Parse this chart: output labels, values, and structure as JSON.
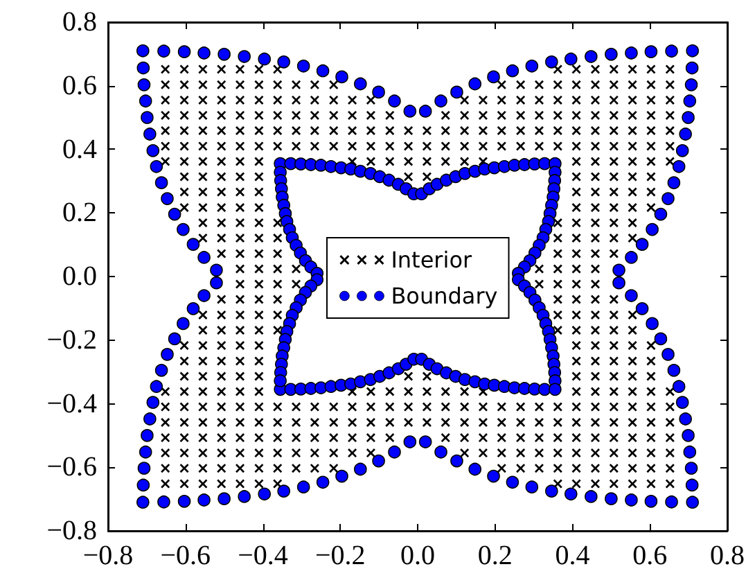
{
  "chart_data": {
    "type": "scatter",
    "xlim": [
      -0.8,
      0.8
    ],
    "ylim": [
      -0.8,
      0.8
    ],
    "xticks": [
      {
        "value": -0.8,
        "label": "−0.8"
      },
      {
        "value": -0.6,
        "label": "−0.6"
      },
      {
        "value": -0.4,
        "label": "−0.4"
      },
      {
        "value": -0.2,
        "label": "−0.2"
      },
      {
        "value": 0,
        "label": "0.0"
      },
      0.2,
      0.4,
      0.6,
      0.8
    ],
    "yticks": [
      {
        "value": -0.8,
        "label": "−0.8"
      },
      {
        "value": -0.6,
        "label": "−0.6"
      },
      {
        "value": -0.4,
        "label": "−0.4"
      },
      {
        "value": -0.2,
        "label": "−0.2"
      },
      {
        "value": 0,
        "label": "0.0"
      },
      0.2,
      0.4,
      0.6,
      0.8
    ],
    "legend": "center",
    "series": [
      {
        "name": "Interior",
        "color": "#000000",
        "marker": "cross",
        "x": [
          -0.652,
          -0.603,
          -0.555,
          -0.507,
          -0.459,
          -0.41,
          -0.362,
          0.362,
          0.41,
          0.459,
          0.507,
          0.555,
          0.603,
          0.652,
          -0.652,
          -0.603,
          -0.555,
          -0.507,
          -0.459,
          -0.41,
          -0.362,
          -0.314,
          -0.266,
          -0.217,
          0.217,
          0.266,
          0.314,
          0.362,
          0.41,
          0.459,
          0.507,
          0.555,
          0.603,
          0.652,
          -0.652,
          -0.603,
          -0.555,
          -0.507,
          -0.459,
          -0.41,
          -0.362,
          -0.314,
          -0.266,
          -0.217,
          -0.169,
          -0.121,
          0.121,
          0.169,
          0.217,
          0.266,
          0.314,
          0.362,
          0.41,
          0.459,
          0.507,
          0.555,
          0.603,
          0.652,
          -0.652,
          -0.603,
          -0.555,
          -0.507,
          -0.459,
          -0.41,
          -0.362,
          -0.314,
          -0.266,
          -0.217,
          -0.169,
          -0.121,
          -0.072,
          0.072,
          0.121,
          0.169,
          0.217,
          0.266,
          0.314,
          0.362,
          0.41,
          0.459,
          0.507,
          0.555,
          0.603,
          0.652,
          -0.652,
          -0.603,
          -0.555,
          -0.507,
          -0.459,
          -0.41,
          -0.362,
          -0.314,
          -0.266,
          -0.217,
          -0.169,
          -0.121,
          -0.072,
          -0.024,
          0.024,
          0.072,
          0.121,
          0.169,
          0.217,
          0.266,
          0.314,
          0.362,
          0.41,
          0.459,
          0.507,
          0.555,
          0.603,
          0.652,
          -0.652,
          -0.603,
          -0.555,
          -0.507,
          -0.459,
          -0.41,
          -0.362,
          -0.314,
          -0.266,
          -0.217,
          -0.169,
          -0.121,
          -0.072,
          -0.024,
          0.024,
          0.072,
          0.121,
          0.169,
          0.217,
          0.266,
          0.314,
          0.362,
          0.41,
          0.459,
          0.507,
          0.555,
          0.603,
          0.652,
          -0.652,
          -0.603,
          -0.555,
          -0.507,
          -0.459,
          -0.41,
          -0.169,
          -0.121,
          -0.072,
          -0.024,
          0.024,
          0.072,
          0.121,
          0.169,
          0.41,
          0.459,
          0.507,
          0.555,
          0.603,
          0.652,
          -0.603,
          -0.555,
          -0.507,
          -0.459,
          -0.41,
          -0.024,
          0.024,
          0.41,
          0.459,
          0.507,
          0.555,
          0.603,
          -0.603,
          -0.555,
          -0.507,
          -0.459,
          -0.41,
          0.41,
          0.459,
          0.507,
          0.555,
          0.603,
          -0.603,
          -0.555,
          -0.507,
          -0.459,
          -0.41,
          0.41,
          0.459,
          0.507,
          0.555,
          0.603,
          -0.555,
          -0.507,
          -0.459,
          -0.41,
          -0.362,
          0.362,
          0.41,
          0.459,
          0.507,
          0.555,
          -0.555,
          -0.507,
          -0.459,
          -0.41,
          -0.362,
          0.362,
          0.41,
          0.459,
          0.507,
          0.555,
          -0.507,
          -0.459,
          -0.41,
          -0.362,
          0.362,
          0.41,
          0.459,
          0.507,
          -0.459,
          -0.41,
          -0.362,
          -0.314,
          0.314,
          0.362,
          0.41,
          0.459,
          -0.459,
          -0.41,
          -0.362,
          -0.314,
          0.314,
          0.362,
          0.41,
          0.459,
          -0.507,
          -0.459,
          -0.41,
          -0.362,
          0.362,
          0.41,
          0.459,
          0.507,
          -0.555,
          -0.507,
          -0.459,
          -0.41,
          -0.362,
          0.362,
          0.41,
          0.459,
          0.507,
          0.555,
          -0.555,
          -0.507,
          -0.459,
          -0.41,
          -0.362,
          0.362,
          0.41,
          0.459,
          0.507,
          0.555,
          -0.603,
          -0.555,
          -0.507,
          -0.459,
          -0.41,
          0.41,
          0.459,
          0.507,
          0.555,
          0.603,
          -0.603,
          -0.555,
          -0.507,
          -0.459,
          -0.41,
          0.41,
          0.459,
          0.507,
          0.555,
          0.603,
          -0.603,
          -0.555,
          -0.507,
          -0.459,
          -0.41,
          -0.024,
          0.024,
          0.41,
          0.459,
          0.507,
          0.555,
          0.603,
          -0.652,
          -0.603,
          -0.555,
          -0.507,
          -0.459,
          -0.41,
          -0.169,
          -0.121,
          -0.072,
          -0.024,
          0.024,
          0.072,
          0.121,
          0.169,
          0.41,
          0.459,
          0.507,
          0.555,
          0.603,
          0.652,
          -0.652,
          -0.603,
          -0.555,
          -0.507,
          -0.459,
          -0.41,
          -0.362,
          -0.314,
          -0.266,
          -0.217,
          -0.169,
          -0.121,
          -0.072,
          -0.024,
          0.024,
          0.072,
          0.121,
          0.169,
          0.217,
          0.266,
          0.314,
          0.362,
          0.41,
          0.459,
          0.507,
          0.555,
          0.603,
          0.652,
          -0.652,
          -0.603,
          -0.555,
          -0.507,
          -0.459,
          -0.41,
          -0.362,
          -0.314,
          -0.266,
          -0.217,
          -0.169,
          -0.121,
          -0.072,
          -0.024,
          0.024,
          0.072,
          0.121,
          0.169,
          0.217,
          0.266,
          0.314,
          0.362,
          0.41,
          0.459,
          0.507,
          0.555,
          0.603,
          0.652,
          -0.652,
          -0.603,
          -0.555,
          -0.507,
          -0.459,
          -0.41,
          -0.362,
          -0.314,
          -0.266,
          -0.217,
          -0.169,
          -0.121,
          -0.072,
          0.072,
          0.121,
          0.169,
          0.217,
          0.266,
          0.314,
          0.362,
          0.41,
          0.459,
          0.507,
          0.555,
          0.603,
          0.652,
          -0.652,
          -0.603,
          -0.555,
          -0.507,
          -0.459,
          -0.41,
          -0.362,
          -0.314,
          -0.266,
          -0.217,
          -0.169,
          -0.121,
          0.121,
          0.169,
          0.217,
          0.266,
          0.314,
          0.362,
          0.41,
          0.459,
          0.507,
          0.555,
          0.603,
          0.652,
          -0.652,
          -0.603,
          -0.555,
          -0.507,
          -0.459,
          -0.41,
          -0.362,
          -0.314,
          -0.266,
          -0.217,
          0.217,
          0.266,
          0.314,
          0.362,
          0.41,
          0.459,
          0.507,
          0.555,
          0.603,
          0.652,
          -0.652,
          -0.603,
          -0.555,
          -0.507,
          -0.459,
          -0.41,
          -0.362,
          0.362,
          0.41,
          0.459,
          0.507,
          0.555,
          0.603,
          0.652
        ],
        "values": [
          0.652,
          0.652,
          0.652,
          0.652,
          0.652,
          0.652,
          0.652,
          0.652,
          0.652,
          0.652,
          0.652,
          0.652,
          0.652,
          0.652,
          0.603,
          0.603,
          0.603,
          0.603,
          0.603,
          0.603,
          0.603,
          0.603,
          0.603,
          0.603,
          0.603,
          0.603,
          0.603,
          0.603,
          0.603,
          0.603,
          0.603,
          0.603,
          0.603,
          0.603,
          0.555,
          0.555,
          0.555,
          0.555,
          0.555,
          0.555,
          0.555,
          0.555,
          0.555,
          0.555,
          0.555,
          0.555,
          0.555,
          0.555,
          0.555,
          0.555,
          0.555,
          0.555,
          0.555,
          0.555,
          0.555,
          0.555,
          0.555,
          0.555,
          0.507,
          0.507,
          0.507,
          0.507,
          0.507,
          0.507,
          0.507,
          0.507,
          0.507,
          0.507,
          0.507,
          0.507,
          0.507,
          0.507,
          0.507,
          0.507,
          0.507,
          0.507,
          0.507,
          0.507,
          0.507,
          0.507,
          0.507,
          0.507,
          0.507,
          0.507,
          0.459,
          0.459,
          0.459,
          0.459,
          0.459,
          0.459,
          0.459,
          0.459,
          0.459,
          0.459,
          0.459,
          0.459,
          0.459,
          0.459,
          0.459,
          0.459,
          0.459,
          0.459,
          0.459,
          0.459,
          0.459,
          0.459,
          0.459,
          0.459,
          0.459,
          0.459,
          0.459,
          0.459,
          0.41,
          0.41,
          0.41,
          0.41,
          0.41,
          0.41,
          0.41,
          0.41,
          0.41,
          0.41,
          0.41,
          0.41,
          0.41,
          0.41,
          0.41,
          0.41,
          0.41,
          0.41,
          0.41,
          0.41,
          0.41,
          0.41,
          0.41,
          0.41,
          0.41,
          0.41,
          0.41,
          0.41,
          0.362,
          0.362,
          0.362,
          0.362,
          0.362,
          0.362,
          0.362,
          0.362,
          0.362,
          0.362,
          0.362,
          0.362,
          0.362,
          0.362,
          0.362,
          0.362,
          0.362,
          0.362,
          0.362,
          0.362,
          0.314,
          0.314,
          0.314,
          0.314,
          0.314,
          0.314,
          0.314,
          0.314,
          0.314,
          0.314,
          0.314,
          0.314,
          0.266,
          0.266,
          0.266,
          0.266,
          0.266,
          0.266,
          0.266,
          0.266,
          0.266,
          0.266,
          0.217,
          0.217,
          0.217,
          0.217,
          0.217,
          0.217,
          0.217,
          0.217,
          0.217,
          0.217,
          0.169,
          0.169,
          0.169,
          0.169,
          0.169,
          0.169,
          0.169,
          0.169,
          0.169,
          0.169,
          0.121,
          0.121,
          0.121,
          0.121,
          0.121,
          0.121,
          0.121,
          0.121,
          0.121,
          0.121,
          0.072,
          0.072,
          0.072,
          0.072,
          0.072,
          0.072,
          0.072,
          0.072,
          0.024,
          0.024,
          0.024,
          0.024,
          0.024,
          0.024,
          0.024,
          0.024,
          -0.024,
          -0.024,
          -0.024,
          -0.024,
          -0.024,
          -0.024,
          -0.024,
          -0.024,
          -0.072,
          -0.072,
          -0.072,
          -0.072,
          -0.072,
          -0.072,
          -0.072,
          -0.072,
          -0.121,
          -0.121,
          -0.121,
          -0.121,
          -0.121,
          -0.121,
          -0.121,
          -0.121,
          -0.121,
          -0.121,
          -0.169,
          -0.169,
          -0.169,
          -0.169,
          -0.169,
          -0.169,
          -0.169,
          -0.169,
          -0.169,
          -0.169,
          -0.217,
          -0.217,
          -0.217,
          -0.217,
          -0.217,
          -0.217,
          -0.217,
          -0.217,
          -0.217,
          -0.217,
          -0.266,
          -0.266,
          -0.266,
          -0.266,
          -0.266,
          -0.266,
          -0.266,
          -0.266,
          -0.266,
          -0.266,
          -0.314,
          -0.314,
          -0.314,
          -0.314,
          -0.314,
          -0.314,
          -0.314,
          -0.314,
          -0.314,
          -0.314,
          -0.314,
          -0.314,
          -0.362,
          -0.362,
          -0.362,
          -0.362,
          -0.362,
          -0.362,
          -0.362,
          -0.362,
          -0.362,
          -0.362,
          -0.362,
          -0.362,
          -0.362,
          -0.362,
          -0.362,
          -0.362,
          -0.362,
          -0.362,
          -0.362,
          -0.362,
          -0.41,
          -0.41,
          -0.41,
          -0.41,
          -0.41,
          -0.41,
          -0.41,
          -0.41,
          -0.41,
          -0.41,
          -0.41,
          -0.41,
          -0.41,
          -0.41,
          -0.41,
          -0.41,
          -0.41,
          -0.41,
          -0.41,
          -0.41,
          -0.41,
          -0.41,
          -0.41,
          -0.41,
          -0.41,
          -0.41,
          -0.41,
          -0.41,
          -0.459,
          -0.459,
          -0.459,
          -0.459,
          -0.459,
          -0.459,
          -0.459,
          -0.459,
          -0.459,
          -0.459,
          -0.459,
          -0.459,
          -0.459,
          -0.459,
          -0.459,
          -0.459,
          -0.459,
          -0.459,
          -0.459,
          -0.459,
          -0.459,
          -0.459,
          -0.459,
          -0.459,
          -0.459,
          -0.459,
          -0.459,
          -0.459,
          -0.507,
          -0.507,
          -0.507,
          -0.507,
          -0.507,
          -0.507,
          -0.507,
          -0.507,
          -0.507,
          -0.507,
          -0.507,
          -0.507,
          -0.507,
          -0.507,
          -0.507,
          -0.507,
          -0.507,
          -0.507,
          -0.507,
          -0.507,
          -0.507,
          -0.507,
          -0.507,
          -0.507,
          -0.507,
          -0.507,
          -0.555,
          -0.555,
          -0.555,
          -0.555,
          -0.555,
          -0.555,
          -0.555,
          -0.555,
          -0.555,
          -0.555,
          -0.555,
          -0.555,
          -0.555,
          -0.555,
          -0.555,
          -0.555,
          -0.555,
          -0.555,
          -0.555,
          -0.555,
          -0.555,
          -0.555,
          -0.555,
          -0.555,
          -0.603,
          -0.603,
          -0.603,
          -0.603,
          -0.603,
          -0.603,
          -0.603,
          -0.603,
          -0.603,
          -0.603,
          -0.603,
          -0.603,
          -0.603,
          -0.603,
          -0.603,
          -0.603,
          -0.603,
          -0.603,
          -0.603,
          -0.603,
          -0.652,
          -0.652,
          -0.652,
          -0.652,
          -0.652,
          -0.652,
          -0.652,
          -0.652,
          -0.652,
          -0.652,
          -0.652,
          -0.652,
          -0.652,
          -0.652
        ]
      },
      {
        "name": "Boundary",
        "color": "#0000ff",
        "marker": "circle",
        "x": [
          -0.71,
          -0.656,
          -0.603,
          -0.552,
          -0.5,
          -0.448,
          -0.396,
          -0.346,
          -0.295,
          -0.245,
          -0.196,
          -0.148,
          -0.101,
          -0.06,
          -0.02,
          0.02,
          0.06,
          0.101,
          0.148,
          0.196,
          0.245,
          0.295,
          0.346,
          0.396,
          0.448,
          0.5,
          0.552,
          0.603,
          0.656,
          0.71,
          0.709,
          0.707,
          0.703,
          0.699,
          0.692,
          0.684,
          0.675,
          0.662,
          0.647,
          0.628,
          0.606,
          0.58,
          0.552,
          0.52,
          0.52,
          0.552,
          0.58,
          0.606,
          0.628,
          0.647,
          0.662,
          0.675,
          0.684,
          0.692,
          0.699,
          0.703,
          0.707,
          0.709,
          -0.71,
          -0.656,
          -0.603,
          -0.552,
          -0.5,
          -0.448,
          -0.396,
          -0.346,
          -0.295,
          -0.245,
          -0.196,
          -0.148,
          -0.101,
          -0.06,
          -0.02,
          0.02,
          0.06,
          0.101,
          0.148,
          0.196,
          0.245,
          0.295,
          0.346,
          0.396,
          0.448,
          0.5,
          0.552,
          0.603,
          0.656,
          0.71,
          -0.709,
          -0.707,
          -0.703,
          -0.699,
          -0.692,
          -0.684,
          -0.675,
          -0.662,
          -0.647,
          -0.628,
          -0.606,
          -0.58,
          -0.552,
          -0.52,
          -0.52,
          -0.552,
          -0.58,
          -0.606,
          -0.628,
          -0.647,
          -0.662,
          -0.675,
          -0.684,
          -0.692,
          -0.699,
          -0.703,
          -0.707,
          -0.709,
          -0.355,
          -0.328,
          -0.302,
          -0.276,
          -0.25,
          -0.224,
          -0.198,
          -0.173,
          -0.148,
          -0.122,
          -0.098,
          -0.074,
          -0.05,
          -0.03,
          -0.01,
          0.01,
          0.03,
          0.05,
          0.074,
          0.098,
          0.122,
          0.148,
          0.173,
          0.198,
          0.224,
          0.25,
          0.276,
          0.302,
          0.328,
          0.355,
          0.355,
          0.354,
          0.352,
          0.35,
          0.346,
          0.342,
          0.338,
          0.331,
          0.324,
          0.314,
          0.303,
          0.29,
          0.276,
          0.26,
          0.26,
          0.276,
          0.29,
          0.303,
          0.314,
          0.324,
          0.331,
          0.338,
          0.342,
          0.346,
          0.35,
          0.352,
          0.354,
          0.355,
          -0.355,
          -0.328,
          -0.302,
          -0.276,
          -0.25,
          -0.224,
          -0.198,
          -0.173,
          -0.148,
          -0.122,
          -0.098,
          -0.074,
          -0.05,
          -0.03,
          -0.01,
          0.01,
          0.03,
          0.05,
          0.074,
          0.098,
          0.122,
          0.148,
          0.173,
          0.198,
          0.224,
          0.25,
          0.276,
          0.302,
          0.328,
          0.355,
          -0.355,
          -0.354,
          -0.352,
          -0.35,
          -0.346,
          -0.342,
          -0.338,
          -0.331,
          -0.324,
          -0.314,
          -0.303,
          -0.29,
          -0.276,
          -0.26,
          -0.26,
          -0.276,
          -0.29,
          -0.303,
          -0.314,
          -0.324,
          -0.331,
          -0.338,
          -0.342,
          -0.346,
          -0.35,
          -0.352,
          -0.354,
          -0.355
        ],
        "values": [
          0.71,
          0.709,
          0.707,
          0.703,
          0.699,
          0.692,
          0.684,
          0.675,
          0.662,
          0.647,
          0.628,
          0.606,
          0.58,
          0.552,
          0.52,
          0.52,
          0.552,
          0.58,
          0.606,
          0.628,
          0.647,
          0.662,
          0.675,
          0.684,
          0.692,
          0.699,
          0.703,
          0.707,
          0.709,
          0.71,
          0.656,
          0.603,
          0.552,
          0.5,
          0.448,
          0.396,
          0.346,
          0.295,
          0.245,
          0.196,
          0.148,
          0.101,
          0.06,
          0.02,
          -0.02,
          -0.06,
          -0.101,
          -0.148,
          -0.196,
          -0.245,
          -0.295,
          -0.346,
          -0.396,
          -0.448,
          -0.5,
          -0.552,
          -0.603,
          -0.656,
          -0.71,
          -0.709,
          -0.707,
          -0.703,
          -0.699,
          -0.692,
          -0.684,
          -0.675,
          -0.662,
          -0.647,
          -0.628,
          -0.606,
          -0.58,
          -0.552,
          -0.52,
          -0.52,
          -0.552,
          -0.58,
          -0.606,
          -0.628,
          -0.647,
          -0.662,
          -0.675,
          -0.684,
          -0.692,
          -0.699,
          -0.703,
          -0.707,
          -0.709,
          -0.71,
          0.656,
          0.603,
          0.552,
          0.5,
          0.448,
          0.396,
          0.346,
          0.295,
          0.245,
          0.196,
          0.148,
          0.101,
          0.06,
          0.02,
          -0.02,
          -0.06,
          -0.101,
          -0.148,
          -0.196,
          -0.245,
          -0.295,
          -0.346,
          -0.396,
          -0.448,
          -0.5,
          -0.552,
          -0.603,
          -0.656,
          0.355,
          0.355,
          0.354,
          0.352,
          0.35,
          0.346,
          0.342,
          0.338,
          0.331,
          0.324,
          0.314,
          0.303,
          0.29,
          0.276,
          0.26,
          0.26,
          0.276,
          0.29,
          0.303,
          0.314,
          0.324,
          0.331,
          0.338,
          0.342,
          0.346,
          0.35,
          0.352,
          0.354,
          0.355,
          0.355,
          0.328,
          0.302,
          0.276,
          0.25,
          0.224,
          0.198,
          0.173,
          0.148,
          0.122,
          0.098,
          0.074,
          0.05,
          0.03,
          0.01,
          -0.01,
          -0.03,
          -0.05,
          -0.074,
          -0.098,
          -0.122,
          -0.148,
          -0.173,
          -0.198,
          -0.224,
          -0.25,
          -0.276,
          -0.302,
          -0.328,
          -0.355,
          -0.355,
          -0.354,
          -0.352,
          -0.35,
          -0.346,
          -0.342,
          -0.338,
          -0.331,
          -0.324,
          -0.314,
          -0.303,
          -0.29,
          -0.276,
          -0.26,
          -0.26,
          -0.276,
          -0.29,
          -0.303,
          -0.314,
          -0.324,
          -0.331,
          -0.338,
          -0.342,
          -0.346,
          -0.35,
          -0.352,
          -0.354,
          -0.355,
          -0.355,
          0.328,
          0.302,
          0.276,
          0.25,
          0.224,
          0.198,
          0.173,
          0.148,
          0.122,
          0.098,
          0.074,
          0.05,
          0.03,
          0.01,
          -0.01,
          -0.03,
          -0.05,
          -0.074,
          -0.098,
          -0.122,
          -0.148,
          -0.173,
          -0.198,
          -0.224,
          -0.25,
          -0.276,
          -0.302,
          -0.328
        ]
      }
    ]
  }
}
